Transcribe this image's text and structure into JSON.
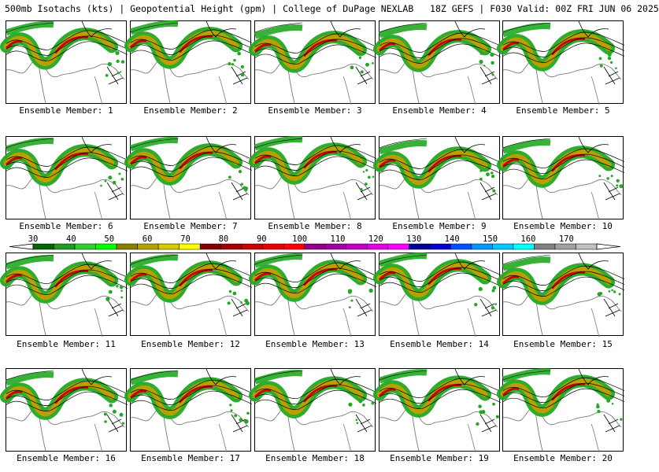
{
  "header": {
    "title": "500mb Isotachs (kts) | Geopotential Height (gpm) | College of DuPage NEXLAB   18Z GEFS | F030 Valid: 00Z FRI JUN 06 2025"
  },
  "members": [
    {
      "label": "Ensemble Member: 1"
    },
    {
      "label": "Ensemble Member: 2"
    },
    {
      "label": "Ensemble Member: 3"
    },
    {
      "label": "Ensemble Member: 4"
    },
    {
      "label": "Ensemble Member: 5"
    },
    {
      "label": "Ensemble Member: 6"
    },
    {
      "label": "Ensemble Member: 7"
    },
    {
      "label": "Ensemble Member: 8"
    },
    {
      "label": "Ensemble Member: 9"
    },
    {
      "label": "Ensemble Member: 10"
    },
    {
      "label": "Ensemble Member: 11"
    },
    {
      "label": "Ensemble Member: 12"
    },
    {
      "label": "Ensemble Member: 13"
    },
    {
      "label": "Ensemble Member: 14"
    },
    {
      "label": "Ensemble Member: 15"
    },
    {
      "label": "Ensemble Member: 16"
    },
    {
      "label": "Ensemble Member: 17"
    },
    {
      "label": "Ensemble Member: 18"
    },
    {
      "label": "Ensemble Member: 19"
    },
    {
      "label": "Ensemble Member: 20"
    }
  ],
  "colorbar": {
    "labels": [
      "30",
      "40",
      "50",
      "60",
      "70",
      "80",
      "90",
      "100",
      "110",
      "120",
      "130",
      "140",
      "150",
      "160",
      "170"
    ],
    "colors": [
      "#006400",
      "#1e9a1e",
      "#32cd32",
      "#00ff00",
      "#8b7d00",
      "#b8a000",
      "#d8c800",
      "#ffff00",
      "#800000",
      "#a00000",
      "#c80000",
      "#e60000",
      "#ff0000",
      "#8b008b",
      "#a000a0",
      "#c000c0",
      "#e000e0",
      "#ff00ff",
      "#00008b",
      "#0000cd",
      "#0050ff",
      "#0096ff",
      "#00c8ff",
      "#00ffff",
      "#808080",
      "#a0a0a0",
      "#c0c0c0"
    ]
  },
  "colors": {
    "jet_outer": "#22a822",
    "jet_mid": "#b8a000",
    "jet_core": "#c80000",
    "contour": "#000000",
    "coast": "#7a7a7a"
  }
}
